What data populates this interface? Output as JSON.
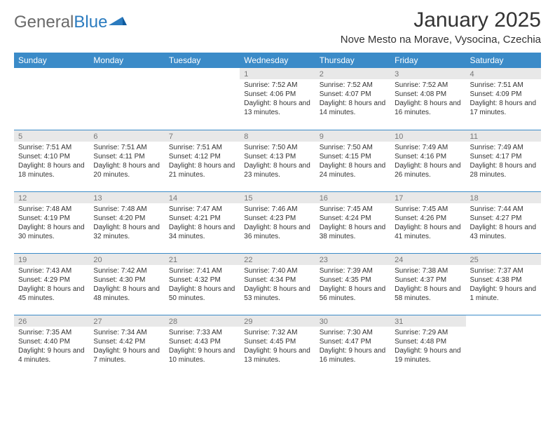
{
  "brand": {
    "part1": "General",
    "part2": "Blue"
  },
  "title": "January 2025",
  "location": "Nove Mesto na Morave, Vysocina, Czechia",
  "colors": {
    "header_bg": "#3b8bc8",
    "header_text": "#ffffff",
    "daynum_bg": "#e8e8e8",
    "daynum_text": "#777777",
    "cell_text": "#333333",
    "rule": "#3b8bc8",
    "page_bg": "#ffffff"
  },
  "day_headers": [
    "Sunday",
    "Monday",
    "Tuesday",
    "Wednesday",
    "Thursday",
    "Friday",
    "Saturday"
  ],
  "weeks": [
    [
      {
        "n": "",
        "sr": "",
        "ss": "",
        "dl": ""
      },
      {
        "n": "",
        "sr": "",
        "ss": "",
        "dl": ""
      },
      {
        "n": "",
        "sr": "",
        "ss": "",
        "dl": ""
      },
      {
        "n": "1",
        "sr": "Sunrise: 7:52 AM",
        "ss": "Sunset: 4:06 PM",
        "dl": "Daylight: 8 hours and 13 minutes."
      },
      {
        "n": "2",
        "sr": "Sunrise: 7:52 AM",
        "ss": "Sunset: 4:07 PM",
        "dl": "Daylight: 8 hours and 14 minutes."
      },
      {
        "n": "3",
        "sr": "Sunrise: 7:52 AM",
        "ss": "Sunset: 4:08 PM",
        "dl": "Daylight: 8 hours and 16 minutes."
      },
      {
        "n": "4",
        "sr": "Sunrise: 7:51 AM",
        "ss": "Sunset: 4:09 PM",
        "dl": "Daylight: 8 hours and 17 minutes."
      }
    ],
    [
      {
        "n": "5",
        "sr": "Sunrise: 7:51 AM",
        "ss": "Sunset: 4:10 PM",
        "dl": "Daylight: 8 hours and 18 minutes."
      },
      {
        "n": "6",
        "sr": "Sunrise: 7:51 AM",
        "ss": "Sunset: 4:11 PM",
        "dl": "Daylight: 8 hours and 20 minutes."
      },
      {
        "n": "7",
        "sr": "Sunrise: 7:51 AM",
        "ss": "Sunset: 4:12 PM",
        "dl": "Daylight: 8 hours and 21 minutes."
      },
      {
        "n": "8",
        "sr": "Sunrise: 7:50 AM",
        "ss": "Sunset: 4:13 PM",
        "dl": "Daylight: 8 hours and 23 minutes."
      },
      {
        "n": "9",
        "sr": "Sunrise: 7:50 AM",
        "ss": "Sunset: 4:15 PM",
        "dl": "Daylight: 8 hours and 24 minutes."
      },
      {
        "n": "10",
        "sr": "Sunrise: 7:49 AM",
        "ss": "Sunset: 4:16 PM",
        "dl": "Daylight: 8 hours and 26 minutes."
      },
      {
        "n": "11",
        "sr": "Sunrise: 7:49 AM",
        "ss": "Sunset: 4:17 PM",
        "dl": "Daylight: 8 hours and 28 minutes."
      }
    ],
    [
      {
        "n": "12",
        "sr": "Sunrise: 7:48 AM",
        "ss": "Sunset: 4:19 PM",
        "dl": "Daylight: 8 hours and 30 minutes."
      },
      {
        "n": "13",
        "sr": "Sunrise: 7:48 AM",
        "ss": "Sunset: 4:20 PM",
        "dl": "Daylight: 8 hours and 32 minutes."
      },
      {
        "n": "14",
        "sr": "Sunrise: 7:47 AM",
        "ss": "Sunset: 4:21 PM",
        "dl": "Daylight: 8 hours and 34 minutes."
      },
      {
        "n": "15",
        "sr": "Sunrise: 7:46 AM",
        "ss": "Sunset: 4:23 PM",
        "dl": "Daylight: 8 hours and 36 minutes."
      },
      {
        "n": "16",
        "sr": "Sunrise: 7:45 AM",
        "ss": "Sunset: 4:24 PM",
        "dl": "Daylight: 8 hours and 38 minutes."
      },
      {
        "n": "17",
        "sr": "Sunrise: 7:45 AM",
        "ss": "Sunset: 4:26 PM",
        "dl": "Daylight: 8 hours and 41 minutes."
      },
      {
        "n": "18",
        "sr": "Sunrise: 7:44 AM",
        "ss": "Sunset: 4:27 PM",
        "dl": "Daylight: 8 hours and 43 minutes."
      }
    ],
    [
      {
        "n": "19",
        "sr": "Sunrise: 7:43 AM",
        "ss": "Sunset: 4:29 PM",
        "dl": "Daylight: 8 hours and 45 minutes."
      },
      {
        "n": "20",
        "sr": "Sunrise: 7:42 AM",
        "ss": "Sunset: 4:30 PM",
        "dl": "Daylight: 8 hours and 48 minutes."
      },
      {
        "n": "21",
        "sr": "Sunrise: 7:41 AM",
        "ss": "Sunset: 4:32 PM",
        "dl": "Daylight: 8 hours and 50 minutes."
      },
      {
        "n": "22",
        "sr": "Sunrise: 7:40 AM",
        "ss": "Sunset: 4:34 PM",
        "dl": "Daylight: 8 hours and 53 minutes."
      },
      {
        "n": "23",
        "sr": "Sunrise: 7:39 AM",
        "ss": "Sunset: 4:35 PM",
        "dl": "Daylight: 8 hours and 56 minutes."
      },
      {
        "n": "24",
        "sr": "Sunrise: 7:38 AM",
        "ss": "Sunset: 4:37 PM",
        "dl": "Daylight: 8 hours and 58 minutes."
      },
      {
        "n": "25",
        "sr": "Sunrise: 7:37 AM",
        "ss": "Sunset: 4:38 PM",
        "dl": "Daylight: 9 hours and 1 minute."
      }
    ],
    [
      {
        "n": "26",
        "sr": "Sunrise: 7:35 AM",
        "ss": "Sunset: 4:40 PM",
        "dl": "Daylight: 9 hours and 4 minutes."
      },
      {
        "n": "27",
        "sr": "Sunrise: 7:34 AM",
        "ss": "Sunset: 4:42 PM",
        "dl": "Daylight: 9 hours and 7 minutes."
      },
      {
        "n": "28",
        "sr": "Sunrise: 7:33 AM",
        "ss": "Sunset: 4:43 PM",
        "dl": "Daylight: 9 hours and 10 minutes."
      },
      {
        "n": "29",
        "sr": "Sunrise: 7:32 AM",
        "ss": "Sunset: 4:45 PM",
        "dl": "Daylight: 9 hours and 13 minutes."
      },
      {
        "n": "30",
        "sr": "Sunrise: 7:30 AM",
        "ss": "Sunset: 4:47 PM",
        "dl": "Daylight: 9 hours and 16 minutes."
      },
      {
        "n": "31",
        "sr": "Sunrise: 7:29 AM",
        "ss": "Sunset: 4:48 PM",
        "dl": "Daylight: 9 hours and 19 minutes."
      },
      {
        "n": "",
        "sr": "",
        "ss": "",
        "dl": ""
      }
    ]
  ]
}
